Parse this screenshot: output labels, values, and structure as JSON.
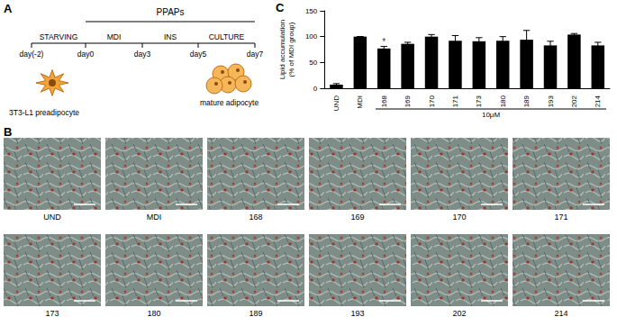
{
  "chart_data": {
    "type": "bar",
    "panel_label": "C",
    "ylabel": [
      "Lipid accumulation",
      "(% of MDI group)"
    ],
    "categories": [
      "UND",
      "MDI",
      "168",
      "169",
      "170",
      "171",
      "173",
      "180",
      "189",
      "193",
      "202",
      "214"
    ],
    "values": [
      7,
      100,
      77,
      86,
      100,
      92,
      91,
      92,
      94,
      83,
      104,
      83
    ],
    "errors": [
      2,
      0,
      4,
      3,
      4,
      10,
      7,
      8,
      18,
      8,
      2,
      6
    ],
    "color": "#000000",
    "ylim": [
      0,
      150
    ],
    "yticks": [
      0,
      50,
      100,
      150
    ],
    "grid": false,
    "annotations": [
      {
        "text": "*",
        "category": "168"
      }
    ],
    "group_label": {
      "text": "10μM",
      "from": "168",
      "to": "214"
    }
  },
  "panel_A": {
    "label": "A",
    "treatment": "PPAPs",
    "phases": [
      "STARVING",
      "MDI",
      "INS",
      "CULTURE"
    ],
    "days": [
      "day(-2)",
      "day0",
      "day3",
      "day5",
      "day7"
    ],
    "start_cell": "3T3-L1 preadipocyte",
    "end_cell": "mature adipocyte"
  },
  "panel_B": {
    "label": "B",
    "images": [
      "UND",
      "MDI",
      "168",
      "169",
      "170",
      "171",
      "173",
      "180",
      "189",
      "193",
      "202",
      "214"
    ]
  }
}
